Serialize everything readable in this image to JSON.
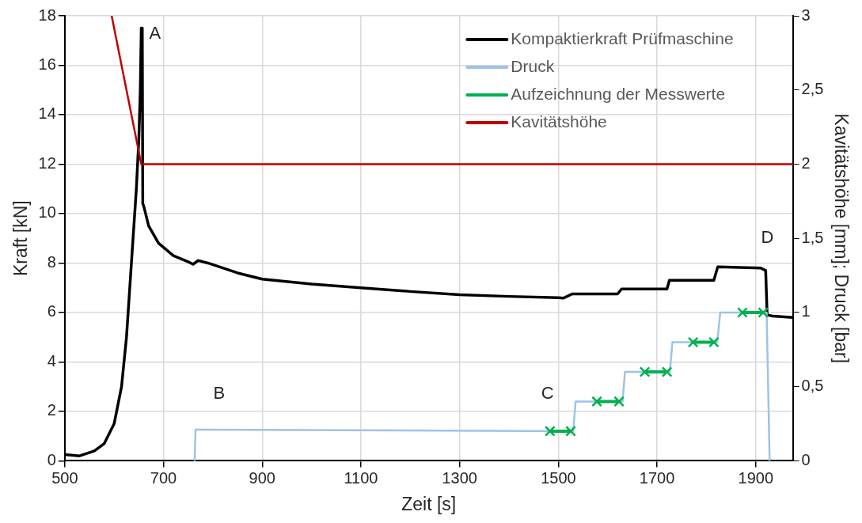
{
  "chart_data": {
    "type": "line",
    "xlabel": "Zeit [s]",
    "ylabel": "Kraft [kN]",
    "y2label": "Kavitätshöhe [mm]; Druck [bar]",
    "xlim": [
      500,
      1975
    ],
    "xticks": [
      500,
      700,
      900,
      1100,
      1300,
      1500,
      1700,
      1900
    ],
    "ylim": [
      0,
      18
    ],
    "yticks": [
      0,
      2,
      4,
      6,
      8,
      10,
      12,
      14,
      16,
      18
    ],
    "y2lim": [
      0,
      3
    ],
    "y2ticks": [
      0,
      {
        "value": 0.5,
        "label": "0,5"
      },
      1,
      {
        "value": 1.5,
        "label": "1,5"
      },
      2,
      {
        "value": 2.5,
        "label": "2,5"
      },
      3
    ],
    "grid": true,
    "legend": "top right",
    "annotations": [
      "A",
      "B",
      "C",
      "D"
    ],
    "series": [
      {
        "name": "Kompaktierkraft Prüfmaschine",
        "color": "#000000",
        "marker": "none",
        "x": [
          500,
          530,
          560,
          580,
          600,
          615,
          625,
          635,
          645,
          650,
          653,
          655,
          657,
          658,
          660,
          670,
          690,
          720,
          750,
          760,
          770,
          790,
          850,
          900,
          1000,
          1100,
          1200,
          1300,
          1400,
          1500,
          1510,
          1528,
          1620,
          1628,
          1720,
          1725,
          1815,
          1823,
          1910,
          1920,
          1923,
          1935,
          1975
        ],
        "values": [
          0.25,
          0.2,
          0.4,
          0.7,
          1.5,
          3,
          5,
          8,
          11,
          13,
          15,
          17.5,
          17.5,
          10.4,
          10.3,
          9.5,
          8.8,
          8.3,
          8.05,
          7.95,
          8.1,
          8.0,
          7.6,
          7.35,
          7.15,
          7.0,
          6.85,
          6.72,
          6.65,
          6.6,
          6.58,
          6.75,
          6.75,
          6.95,
          6.95,
          7.3,
          7.3,
          7.85,
          7.8,
          7.7,
          5.9,
          5.85,
          5.8
        ]
      },
      {
        "name": "Druck",
        "color": "#9dc3e6",
        "axis": "y2",
        "marker": "none",
        "x": [
          763,
          765,
          1530,
          1535,
          1630,
          1635,
          1726,
          1731,
          1822,
          1828,
          1922,
          1928
        ],
        "values": [
          0,
          0.21,
          0.2,
          0.4,
          0.4,
          0.6,
          0.6,
          0.8,
          0.8,
          1.0,
          1.0,
          0
        ]
      },
      {
        "name": "Aufzeichnung der Messwerte",
        "color": "#00b050",
        "axis": "y2",
        "marker": "cross",
        "x": [
          1483,
          1525,
          1550,
          1578,
          1623,
          1650,
          1675,
          1720,
          1750,
          1773,
          1815,
          1845,
          1873,
          1915
        ],
        "values": [
          0.2,
          0.2,
          null,
          0.4,
          0.4,
          null,
          0.6,
          0.6,
          null,
          0.8,
          0.8,
          null,
          1.0,
          1.0
        ]
      },
      {
        "name": "Kavitätshöhe",
        "color": "#c00000",
        "axis": "y2",
        "marker": "none",
        "x": [
          595,
          655,
          1975
        ],
        "values": [
          3,
          2,
          2
        ]
      }
    ]
  }
}
